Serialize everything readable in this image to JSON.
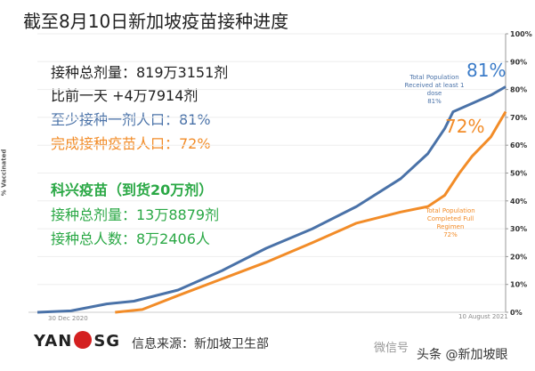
{
  "title": "截至8月10日新加坡疫苗接种进度",
  "stats": {
    "total_doses": "接种总剂量：819万3151剂",
    "daily_change": "比前一天 +4万7914剂",
    "at_least_one": "至少接种一剂人口：81%",
    "completed": "完成接种疫苗人口：72%",
    "sinovac_title": "科兴疫苗（到货20万剂）",
    "sinovac_doses": "接种总剂量：13万8879剂",
    "sinovac_people": "接种总人数：8万2406人"
  },
  "colors": {
    "blue": "#4a72a8",
    "orange": "#f28c28",
    "green": "#2aa845",
    "dark": "#222222"
  },
  "chart_data": {
    "type": "line",
    "ylabel": "% Vaccinated",
    "ylim": [
      0,
      100
    ],
    "yticks": [
      "0%",
      "10%",
      "20%",
      "30%",
      "40%",
      "50%",
      "60%",
      "70%",
      "80%",
      "90%",
      "100%"
    ],
    "xlim": [
      "2020-12-30",
      "2021-08-10"
    ],
    "xtick_labels": [
      "30 Dec 2020",
      "10 August 2021"
    ],
    "series": [
      {
        "name": "Total Population Received at least 1 dose",
        "label_value": "81%",
        "big_label": "81%",
        "color": "#4a72a8",
        "points": [
          [
            "2020-12-30",
            0
          ],
          [
            "2021-01-15",
            0.5
          ],
          [
            "2021-02-01",
            3
          ],
          [
            "2021-02-14",
            4
          ],
          [
            "2021-03-07",
            8
          ],
          [
            "2021-03-28",
            15
          ],
          [
            "2021-04-18",
            23
          ],
          [
            "2021-05-10",
            30
          ],
          [
            "2021-05-31",
            38
          ],
          [
            "2021-06-21",
            48
          ],
          [
            "2021-07-04",
            57
          ],
          [
            "2021-07-12",
            66
          ],
          [
            "2021-07-16",
            72
          ],
          [
            "2021-07-25",
            75
          ],
          [
            "2021-08-03",
            78
          ],
          [
            "2021-08-10",
            81
          ]
        ]
      },
      {
        "name": "Total Population Completed Full Regimen",
        "label_value": "72%",
        "big_label": "72%",
        "color": "#f28c28",
        "points": [
          [
            "2021-02-05",
            0
          ],
          [
            "2021-02-18",
            1
          ],
          [
            "2021-03-07",
            6
          ],
          [
            "2021-03-28",
            12
          ],
          [
            "2021-04-18",
            18
          ],
          [
            "2021-05-10",
            25
          ],
          [
            "2021-05-31",
            32
          ],
          [
            "2021-06-21",
            36
          ],
          [
            "2021-07-04",
            38
          ],
          [
            "2021-07-12",
            42
          ],
          [
            "2021-07-19",
            50
          ],
          [
            "2021-07-25",
            56
          ],
          [
            "2021-08-03",
            63
          ],
          [
            "2021-08-10",
            72
          ]
        ]
      }
    ]
  },
  "footer": {
    "logo": "YAN SG",
    "source": "信息来源：新加坡卫生部",
    "watermark1": "微信号",
    "watermark2": "头条 @新加坡眼"
  }
}
